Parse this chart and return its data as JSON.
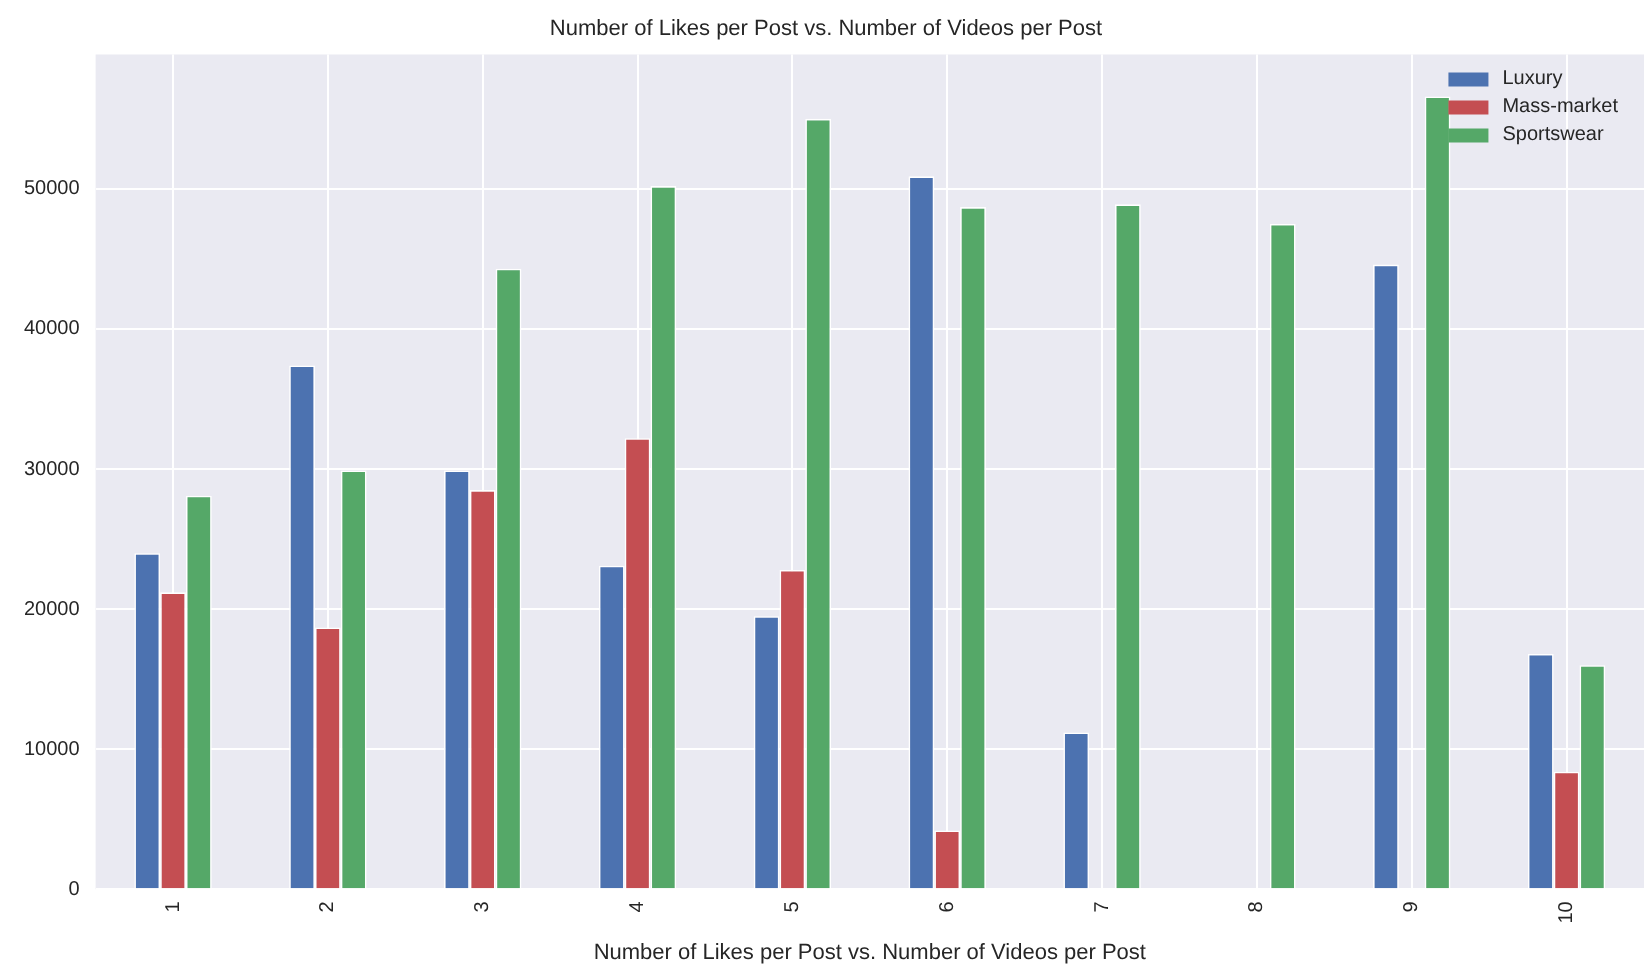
{
  "chart_data": {
    "type": "bar",
    "title": "Number of Likes per Post vs. Number of Videos per Post",
    "xlabel": "Number of Likes per Post vs. Number of Videos per Post",
    "categories": [
      "1",
      "2",
      "3",
      "4",
      "5",
      "6",
      "7",
      "8",
      "9",
      "10"
    ],
    "series": [
      {
        "name": "Luxury",
        "color": "#4c72b0",
        "values": [
          24000,
          37400,
          29900,
          23100,
          19500,
          50900,
          11200,
          null,
          44600,
          16800
        ]
      },
      {
        "name": "Mass-market",
        "color": "#c44e52",
        "values": [
          21200,
          18700,
          28500,
          32200,
          22800,
          4200,
          null,
          null,
          null,
          8400
        ]
      },
      {
        "name": "Sportswear",
        "color": "#55a868",
        "values": [
          28100,
          29900,
          44300,
          50200,
          55000,
          48700,
          48900,
          47500,
          56600,
          16000
        ]
      }
    ],
    "ylim": [
      0,
      59600
    ],
    "yticks": [
      0,
      10000,
      20000,
      30000,
      40000,
      50000
    ],
    "grid": true,
    "legend": "top right"
  }
}
